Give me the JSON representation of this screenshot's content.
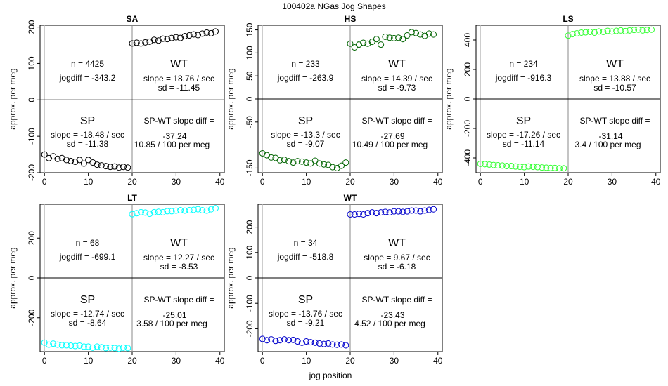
{
  "figure": {
    "title": "100402a   NGas Jog Shapes",
    "xlabel": "jog position"
  },
  "chart_data": [
    {
      "type": "scatter",
      "title": "SA",
      "ylabel": "approx. per meg",
      "color": "#000000",
      "xlim": [
        -1,
        41
      ],
      "ylim": [
        -200,
        205
      ],
      "xticks": [
        0,
        10,
        20,
        30,
        40
      ],
      "yticks": [
        -200,
        -100,
        0,
        100,
        200
      ],
      "n_label": "n = 4425",
      "jogdiff_label": "jogdiff = -343.2",
      "wt": {
        "label": "WT",
        "slope": "slope = 18.76 / sec",
        "sd": "sd = -11.45"
      },
      "sp": {
        "label": "SP",
        "slope": "slope = -18.48 / sec",
        "sd": "sd = -11.38"
      },
      "diff": {
        "label": "SP-WT slope diff =",
        "value": "-37.24",
        "per": "10.85 / 100 per meg"
      },
      "sp_x": [
        0,
        1,
        2,
        3,
        4,
        5,
        6,
        7,
        8,
        9,
        10,
        11,
        12,
        13,
        14,
        15,
        16,
        17,
        18,
        19
      ],
      "sp_y": [
        -150,
        -160,
        -155,
        -162,
        -160,
        -165,
        -168,
        -170,
        -165,
        -175,
        -165,
        -172,
        -178,
        -180,
        -182,
        -184,
        -183,
        -186,
        -184,
        -186
      ],
      "wt_x": [
        20,
        21,
        22,
        23,
        24,
        25,
        26,
        27,
        28,
        29,
        30,
        31,
        32,
        33,
        34,
        35,
        36,
        37,
        38,
        39
      ],
      "wt_y": [
        155,
        157,
        155,
        158,
        160,
        165,
        163,
        168,
        167,
        170,
        172,
        170,
        175,
        177,
        180,
        178,
        182,
        185,
        183,
        188
      ]
    },
    {
      "type": "scatter",
      "title": "HS",
      "ylabel": "approx. per meg",
      "color": "#006400",
      "xlim": [
        -1,
        41
      ],
      "ylim": [
        -160,
        160
      ],
      "xticks": [
        0,
        10,
        20,
        30,
        40
      ],
      "yticks": [
        -150,
        -50,
        0,
        50,
        100,
        150
      ],
      "n_label": "n = 233",
      "jogdiff_label": "jogdiff = -263.9",
      "wt": {
        "label": "WT",
        "slope": "slope = 14.39 / sec",
        "sd": "sd = -9.73"
      },
      "sp": {
        "label": "SP",
        "slope": "slope = -13.3 / sec",
        "sd": "sd = -9.07"
      },
      "diff": {
        "label": "SP-WT slope diff =",
        "value": "-27.69",
        "per": "10.49 / 100 per meg"
      },
      "sp_x": [
        0,
        1,
        2,
        3,
        4,
        5,
        6,
        7,
        8,
        9,
        10,
        11,
        12,
        13,
        14,
        15,
        16,
        17,
        18,
        19
      ],
      "sp_y": [
        -118,
        -122,
        -127,
        -128,
        -133,
        -132,
        -135,
        -138,
        -135,
        -136,
        -138,
        -140,
        -134,
        -140,
        -142,
        -143,
        -148,
        -150,
        -145,
        -138
      ],
      "wt_x": [
        20,
        21,
        22,
        23,
        24,
        25,
        26,
        27,
        28,
        29,
        30,
        31,
        32,
        33,
        34,
        35,
        36,
        37,
        38,
        39
      ],
      "wt_y": [
        120,
        112,
        118,
        122,
        120,
        124,
        130,
        118,
        135,
        133,
        132,
        133,
        130,
        138,
        145,
        143,
        140,
        137,
        142,
        140
      ]
    },
    {
      "type": "scatter",
      "title": "LS",
      "ylabel": "approx. per meg",
      "color": "#33ff33",
      "xlim": [
        -1,
        41
      ],
      "ylim": [
        -500,
        500
      ],
      "xticks": [
        0,
        10,
        20,
        30,
        40
      ],
      "yticks": [
        -400,
        -200,
        0,
        200,
        400
      ],
      "n_label": "n = 234",
      "jogdiff_label": "jogdiff = -916.3",
      "wt": {
        "label": "WT",
        "slope": "slope = 13.88 / sec",
        "sd": "sd = -10.57"
      },
      "sp": {
        "label": "SP",
        "slope": "slope = -17.26 / sec",
        "sd": "sd = -11.14"
      },
      "diff": {
        "label": "SP-WT slope diff =",
        "value": "-31.14",
        "per": "3.4 / 100 per meg"
      },
      "sp_x": [
        0,
        1,
        2,
        3,
        4,
        5,
        6,
        7,
        8,
        9,
        10,
        11,
        12,
        13,
        14,
        15,
        16,
        17,
        18,
        19
      ],
      "sp_y": [
        -440,
        -442,
        -445,
        -448,
        -450,
        -452,
        -455,
        -455,
        -458,
        -460,
        -462,
        -458,
        -460,
        -462,
        -465,
        -466,
        -468,
        -468,
        -470,
        -470
      ],
      "wt_x": [
        20,
        21,
        22,
        23,
        24,
        25,
        26,
        27,
        28,
        29,
        30,
        31,
        32,
        33,
        34,
        35,
        36,
        37,
        38,
        39
      ],
      "wt_y": [
        430,
        440,
        445,
        450,
        452,
        455,
        450,
        458,
        455,
        462,
        458,
        462,
        465,
        460,
        465,
        468,
        470,
        465,
        468,
        470
      ]
    },
    {
      "type": "scatter",
      "title": "LT",
      "ylabel": "approx. per meg",
      "color": "#00ffff",
      "xlim": [
        -1,
        41
      ],
      "ylim": [
        -370,
        370
      ],
      "xticks": [
        0,
        10,
        20,
        30,
        40
      ],
      "yticks": [
        -200,
        0,
        200
      ],
      "n_label": "n = 68",
      "jogdiff_label": "jogdiff = -699.1",
      "wt": {
        "label": "WT",
        "slope": "slope = 12.27 / sec",
        "sd": "sd = -8.53"
      },
      "sp": {
        "label": "SP",
        "slope": "slope = -12.74 / sec",
        "sd": "sd = -8.64"
      },
      "diff": {
        "label": "SP-WT slope diff =",
        "value": "-25.01",
        "per": "3.58 / 100 per meg"
      },
      "sp_x": [
        0,
        1,
        2,
        3,
        4,
        5,
        6,
        7,
        8,
        9,
        10,
        11,
        12,
        13,
        14,
        15,
        16,
        17,
        18,
        19
      ],
      "sp_y": [
        -325,
        -335,
        -330,
        -335,
        -338,
        -338,
        -340,
        -342,
        -340,
        -345,
        -345,
        -350,
        -345,
        -348,
        -352,
        -350,
        -352,
        -355,
        -350,
        -352
      ],
      "wt_x": [
        20,
        21,
        22,
        23,
        24,
        25,
        26,
        27,
        28,
        29,
        30,
        31,
        32,
        33,
        34,
        35,
        36,
        37,
        38,
        39
      ],
      "wt_y": [
        320,
        325,
        330,
        328,
        322,
        330,
        332,
        330,
        335,
        335,
        338,
        340,
        338,
        340,
        342,
        345,
        340,
        338,
        345,
        350
      ]
    },
    {
      "type": "scatter",
      "title": "WT",
      "ylabel": "approx. per meg",
      "color": "#0000cc",
      "xlim": [
        -1,
        41
      ],
      "ylim": [
        -290,
        290
      ],
      "xticks": [
        0,
        10,
        20,
        30,
        40
      ],
      "yticks": [
        -200,
        -100,
        0,
        100,
        200
      ],
      "n_label": "n = 34",
      "jogdiff_label": "jogdiff = -518.8",
      "wt": {
        "label": "WT",
        "slope": "slope = 9.67 / sec",
        "sd": "sd = -6.18"
      },
      "sp": {
        "label": "SP",
        "slope": "slope = -13.76 / sec",
        "sd": "sd = -9.21"
      },
      "diff": {
        "label": "SP-WT slope diff =",
        "value": "-23.43",
        "per": "4.52 / 100 per meg"
      },
      "sp_x": [
        0,
        1,
        2,
        3,
        4,
        5,
        6,
        7,
        8,
        9,
        10,
        11,
        12,
        13,
        14,
        15,
        16,
        17,
        18,
        19
      ],
      "sp_y": [
        -240,
        -245,
        -242,
        -248,
        -245,
        -242,
        -245,
        -244,
        -250,
        -255,
        -250,
        -253,
        -255,
        -258,
        -260,
        -258,
        -262,
        -263,
        -262,
        -265
      ],
      "wt_x": [
        20,
        21,
        22,
        23,
        24,
        25,
        26,
        27,
        28,
        29,
        30,
        31,
        32,
        33,
        34,
        35,
        36,
        37,
        38,
        39
      ],
      "wt_y": [
        250,
        250,
        252,
        250,
        255,
        258,
        255,
        258,
        260,
        258,
        262,
        262,
        260,
        262,
        265,
        265,
        262,
        265,
        268,
        270
      ]
    }
  ]
}
